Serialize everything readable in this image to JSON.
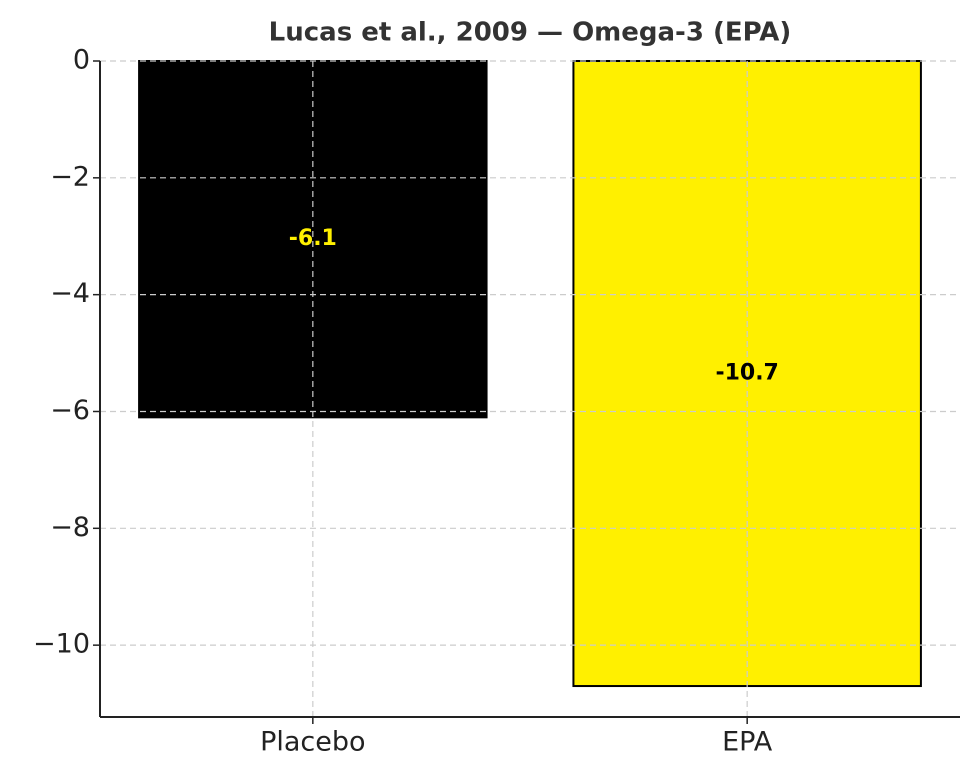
{
  "chart_data": {
    "type": "bar",
    "title": "Lucas et al., 2009 — Omega-3 (EPA)",
    "categories": [
      "Placebo",
      "EPA"
    ],
    "values": [
      -6.1,
      -10.7
    ],
    "colors": [
      "#000000",
      "#fff000"
    ],
    "label_colors": [
      "#fff000",
      "#000000"
    ],
    "ylim": [
      -11.23,
      0
    ],
    "yticks": [
      {
        "value": -10,
        "label": "−10"
      },
      {
        "value": -8,
        "label": "−8"
      },
      {
        "value": -6,
        "label": "−6"
      },
      {
        "value": -4,
        "label": "−4"
      },
      {
        "value": -2,
        "label": "−2"
      },
      0
    ],
    "grid": true
  }
}
